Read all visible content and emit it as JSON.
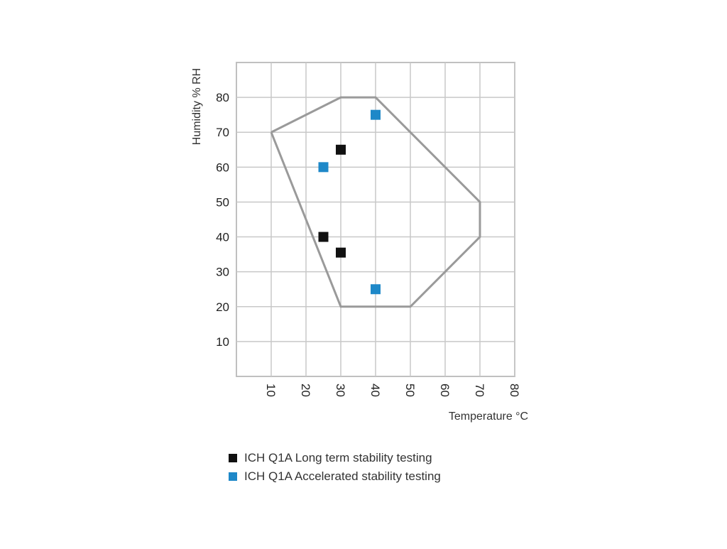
{
  "chart_data": {
    "type": "scatter",
    "title": "",
    "xlabel": "Temperature °C",
    "ylabel": "Humidity % RH",
    "xlim": [
      0,
      80
    ],
    "ylim": [
      0,
      90
    ],
    "x_ticks": [
      10,
      20,
      30,
      40,
      50,
      60,
      70,
      80
    ],
    "y_ticks": [
      10,
      20,
      30,
      40,
      50,
      60,
      70,
      80
    ],
    "grid": true,
    "legend_position": "bottom",
    "region": {
      "x": [
        10,
        30,
        40,
        70,
        70,
        50,
        30,
        10
      ],
      "y": [
        70,
        80,
        80,
        50,
        40,
        20,
        20,
        70
      ],
      "color": "#9a9a9a"
    },
    "series": [
      {
        "name": "ICH Q1A Long term stability testing",
        "color": "#111111",
        "x": [
          30,
          25,
          30
        ],
        "y": [
          65,
          40,
          35.5
        ]
      },
      {
        "name": "ICH Q1A Accelerated stability testing",
        "color": "#1e88c8",
        "x": [
          40,
          25,
          40
        ],
        "y": [
          75,
          60,
          25
        ]
      }
    ]
  }
}
